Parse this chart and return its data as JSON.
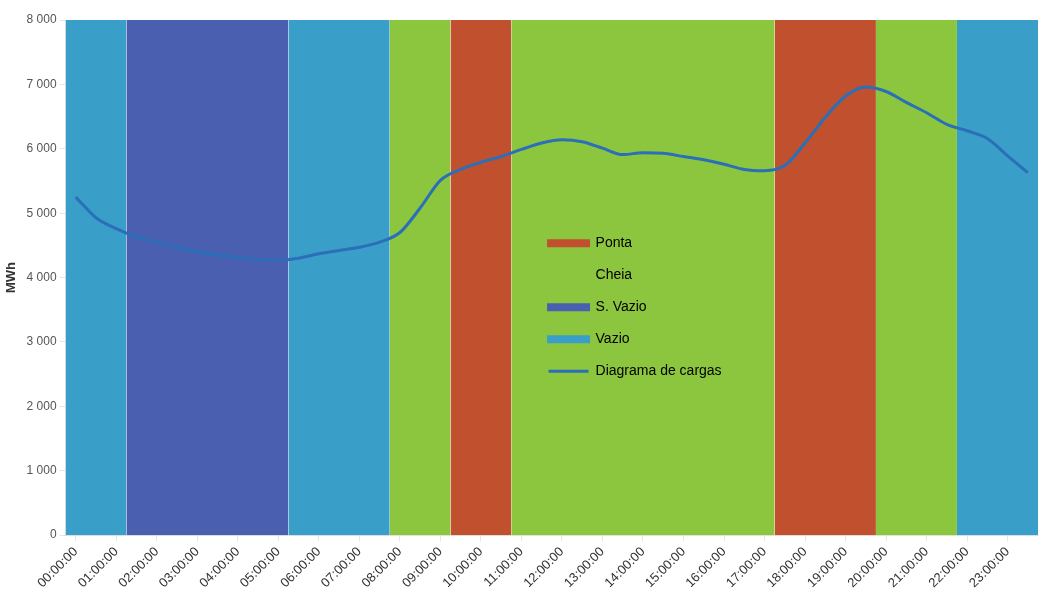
{
  "chart_data": {
    "type": "line",
    "ylabel": "MWh",
    "grid": false,
    "legend": "center",
    "xlim": [
      -0.25,
      23.75
    ],
    "xticks": [
      {
        "value": 0,
        "label": "00:00:00"
      },
      {
        "value": 1,
        "label": "01:00:00"
      },
      {
        "value": 2,
        "label": "02:00:00"
      },
      {
        "value": 3,
        "label": "03:00:00"
      },
      {
        "value": 4,
        "label": "04:00:00"
      },
      {
        "value": 5,
        "label": "05:00:00"
      },
      {
        "value": 6,
        "label": "06:00:00"
      },
      {
        "value": 7,
        "label": "07:00:00"
      },
      {
        "value": 8,
        "label": "08:00:00"
      },
      {
        "value": 9,
        "label": "09:00:00"
      },
      {
        "value": 10,
        "label": "10:00:00"
      },
      {
        "value": 11,
        "label": "11:00:00"
      },
      {
        "value": 12,
        "label": "12:00:00"
      },
      {
        "value": 13,
        "label": "13:00:00"
      },
      {
        "value": 14,
        "label": "14:00:00"
      },
      {
        "value": 15,
        "label": "15:00:00"
      },
      {
        "value": 16,
        "label": "16:00:00"
      },
      {
        "value": 17,
        "label": "17:00:00"
      },
      {
        "value": 18,
        "label": "18:00:00"
      },
      {
        "value": 19,
        "label": "19:00:00"
      },
      {
        "value": 20,
        "label": "20:00:00"
      },
      {
        "value": 21,
        "label": "21:00:00"
      },
      {
        "value": 22,
        "label": "22:00:00"
      },
      {
        "value": 23,
        "label": "23:00:00"
      }
    ],
    "ylim": [
      0,
      8000
    ],
    "yticks": [
      {
        "value": 0,
        "label": "0"
      },
      {
        "value": 1000,
        "label": "1 000"
      },
      {
        "value": 2000,
        "label": "2 000"
      },
      {
        "value": 3000,
        "label": "3 000"
      },
      {
        "value": 4000,
        "label": "4 000"
      },
      {
        "value": 5000,
        "label": "5 000"
      },
      {
        "value": 6000,
        "label": "6 000"
      },
      {
        "value": 7000,
        "label": "7 000"
      },
      {
        "value": 8000,
        "label": "8 000"
      }
    ],
    "series": [
      {
        "name": "Ponta",
        "type": "area",
        "color": "#c0502e",
        "x": [
          9.25,
          10.75,
          14,
          17.25,
          19.75
        ],
        "values": [
          8000,
          8000,
          null,
          8000,
          8000
        ]
      },
      {
        "name": "Cheia",
        "type": "area",
        "color": "#8cc63f",
        "x": [
          7.75,
          9.25,
          10,
          10.75,
          17.25,
          18,
          19.75,
          21.75
        ],
        "values": [
          8000,
          8000,
          null,
          8000,
          8000,
          null,
          8000,
          8000
        ]
      },
      {
        "name": "S. Vazio",
        "type": "area",
        "color": "#4a5fb0",
        "x": [
          1.25,
          5.25
        ],
        "values": [
          8000,
          8000
        ]
      },
      {
        "name": "Vazio",
        "type": "area",
        "color": "#3a9fc8",
        "x": [
          -0.25,
          1.25,
          3,
          5.25,
          7.75,
          15,
          21.75,
          23.75
        ],
        "values": [
          8000,
          8000,
          null,
          8000,
          8000,
          null,
          8000,
          8000
        ]
      },
      {
        "name": "Diagrama de cargas",
        "type": "line",
        "color": "#2a6fb8",
        "x": [
          0,
          0.5,
          1,
          1.5,
          2,
          2.5,
          3,
          3.5,
          4,
          4.5,
          5,
          5.5,
          6,
          6.5,
          7,
          7.5,
          8,
          8.5,
          9,
          9.5,
          10,
          10.5,
          11,
          11.5,
          12,
          12.5,
          13,
          13.5,
          14,
          14.5,
          15,
          15.5,
          16,
          16.5,
          17,
          17.5,
          18,
          18.5,
          19,
          19.5,
          20,
          20.5,
          21,
          21.5,
          22,
          22.5,
          23,
          23.5
        ],
        "values": [
          5250,
          4930,
          4760,
          4630,
          4550,
          4470,
          4400,
          4350,
          4320,
          4280,
          4270,
          4300,
          4370,
          4420,
          4470,
          4550,
          4700,
          5080,
          5510,
          5680,
          5790,
          5880,
          5990,
          6090,
          6140,
          6110,
          6010,
          5910,
          5940,
          5930,
          5880,
          5830,
          5760,
          5680,
          5660,
          5740,
          6090,
          6490,
          6820,
          6960,
          6890,
          6720,
          6560,
          6380,
          6280,
          6160,
          5890,
          5630
        ]
      }
    ]
  }
}
